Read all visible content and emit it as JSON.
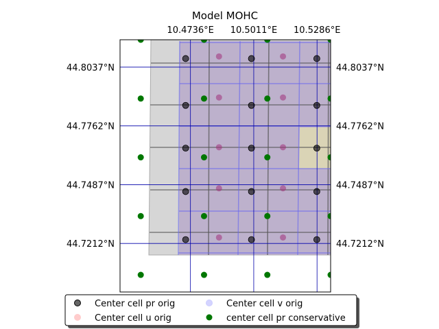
{
  "chart_data": {
    "type": "scatter",
    "title": "Model MOHC",
    "xlabel": "",
    "ylabel": "",
    "xlim": [
      10.443,
      10.5345
    ],
    "ylim": [
      44.6985,
      44.8165
    ],
    "x_ticks": [
      {
        "value": 10.4736,
        "label": "10.4736°E"
      },
      {
        "value": 10.5011,
        "label": "10.5011°E"
      },
      {
        "value": 10.5286,
        "label": "10.5286°E"
      }
    ],
    "y_ticks": [
      {
        "value": 44.8037,
        "label": "44.8037°N"
      },
      {
        "value": 44.7762,
        "label": "44.7762°N"
      },
      {
        "value": 44.7487,
        "label": "44.7487°N"
      },
      {
        "value": 44.7212,
        "label": "44.7212°N"
      }
    ],
    "gridlines": true,
    "grid_color": "#0000aa",
    "legend_position": "below",
    "legend": [
      {
        "name": "Center cell pr orig",
        "color": "#333333",
        "key": "pr_orig"
      },
      {
        "name": "Center cell v orig",
        "color": "#aaaaff",
        "key": "v_orig"
      },
      {
        "name": "Center cell u orig",
        "color": "#ffaaaa",
        "key": "u_orig"
      },
      {
        "name": "center cell pr conservative",
        "color": "#007700",
        "key": "pr_cons"
      }
    ],
    "series": [
      {
        "name": "Center cell pr orig",
        "color": "#333333",
        "x": [
          10.4715,
          10.5001,
          10.5285,
          10.4715,
          10.5001,
          10.5285,
          10.4715,
          10.5001,
          10.5285,
          10.4715,
          10.5001,
          10.5285,
          10.4715,
          10.5001,
          10.5285,
          10.4715,
          10.5001,
          10.5285
        ],
        "y": [
          44.8193,
          44.8193,
          44.8193,
          44.8077,
          44.8077,
          44.8077,
          44.7858,
          44.7858,
          44.7858,
          44.7658,
          44.7658,
          44.7658,
          44.7455,
          44.7455,
          44.7455,
          44.723,
          44.723,
          44.723
        ]
      },
      {
        "name": "Center cell u orig",
        "color": "#ffaaaa",
        "x": [
          10.486,
          10.5138,
          10.5425,
          10.486,
          10.5138,
          10.5425,
          10.486,
          10.5138,
          10.5425,
          10.486,
          10.5138,
          10.5425,
          10.486,
          10.5138,
          10.5425
        ],
        "y": [
          44.8087,
          44.8087,
          44.8087,
          44.7895,
          44.7895,
          44.7895,
          44.7662,
          44.7662,
          44.7662,
          44.747,
          44.747,
          44.747,
          44.724,
          44.724,
          44.724
        ]
      },
      {
        "name": "center cell pr conservative",
        "color": "#007700",
        "x": [
          10.452,
          10.4795,
          10.507,
          10.5345,
          10.452,
          10.4795,
          10.507,
          10.5345,
          10.452,
          10.4795,
          10.507,
          10.5345,
          10.452,
          10.4795,
          10.507,
          10.5345,
          10.452,
          10.4795,
          10.507,
          10.5345
        ],
        "y": [
          44.8165,
          44.8165,
          44.8165,
          44.8165,
          44.789,
          44.789,
          44.789,
          44.789,
          44.7615,
          44.7615,
          44.7615,
          44.7615,
          44.734,
          44.734,
          44.734,
          44.734,
          44.7065,
          44.7065,
          44.7065,
          44.7065
        ]
      }
    ]
  }
}
